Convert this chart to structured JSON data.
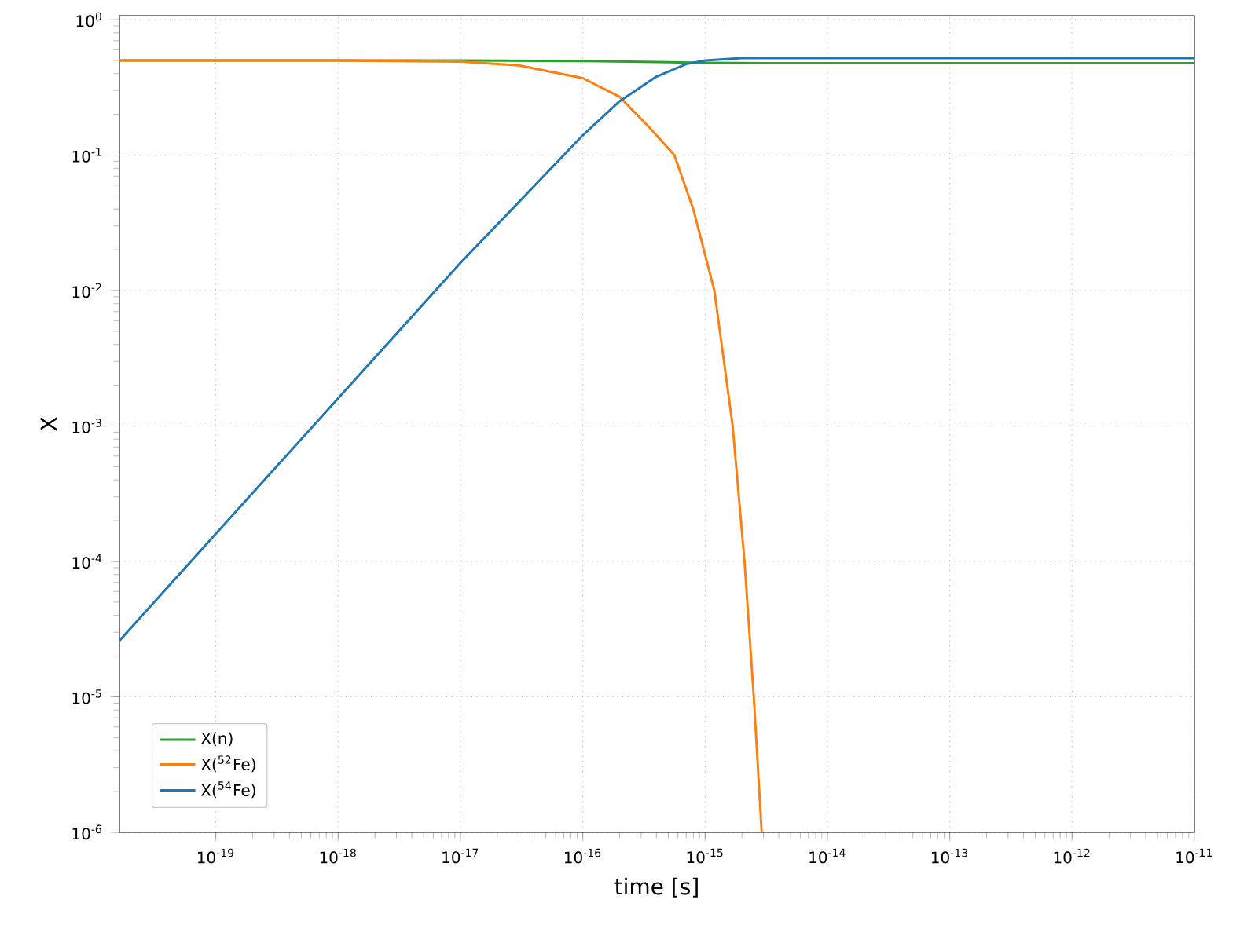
{
  "chart_data": {
    "type": "line",
    "xlabel": "time [s]",
    "ylabel": "X",
    "log": "xy",
    "grid": true,
    "legend": "bottom left",
    "xlim": [
      1.63e-20,
      1e-11
    ],
    "ylim": [
      1e-06,
      1.07
    ],
    "xticks": [
      {
        "value": 1e-19,
        "label": "10$^{-19}$"
      },
      {
        "value": 1e-18,
        "label": "10$^{-18}$"
      },
      {
        "value": 1e-17,
        "label": "10$^{-17}$"
      },
      {
        "value": 1e-16,
        "label": "10$^{-16}$"
      },
      {
        "value": 1e-15,
        "label": "10$^{-15}$"
      },
      {
        "value": 1e-14,
        "label": "10$^{-14}$"
      },
      {
        "value": 1e-13,
        "label": "10$^{-13}$"
      },
      {
        "value": 1e-12,
        "label": "10$^{-12}$"
      },
      {
        "value": 1e-11,
        "label": "10$^{-11}$"
      }
    ],
    "yticks": [
      {
        "value": 1e-06,
        "label": "10$^{-6}$"
      },
      {
        "value": 1e-05,
        "label": "10$^{-5}$"
      },
      {
        "value": 0.0001,
        "label": "10$^{-4}$"
      },
      {
        "value": 0.001,
        "label": "10$^{-3}$"
      },
      {
        "value": 0.01,
        "label": "10$^{-2}$"
      },
      {
        "value": 0.1,
        "label": "10$^{-1}$"
      },
      {
        "value": 1,
        "label": "10$^{0}$"
      }
    ],
    "series": [
      {
        "name": "X(n)",
        "color": "#2ca02c",
        "x": [
          1.63e-20,
          1e-17,
          1e-16,
          4e-16,
          1e-15,
          3e-15,
          1e-11
        ],
        "values": [
          0.5,
          0.5,
          0.495,
          0.487,
          0.48,
          0.478,
          0.478
        ]
      },
      {
        "name": "X($^{52}$Fe)",
        "color": "#ff7f0e",
        "x": [
          1.63e-20,
          1e-18,
          1e-17,
          3e-17,
          1e-16,
          2e-16,
          3.5e-16,
          5.6e-16,
          8e-16,
          1.19e-15,
          1.68e-15,
          2.1e-15,
          2.5e-15,
          2.9e-15
        ],
        "values": [
          0.5,
          0.5,
          0.49,
          0.46,
          0.37,
          0.27,
          0.16,
          0.1,
          0.04,
          0.01,
          0.001,
          0.0001,
          1e-05,
          1e-06
        ]
      },
      {
        "name": "X($^{54}$Fe)",
        "color": "#1f77b4",
        "x": [
          1.63e-20,
          1e-19,
          1e-18,
          1e-17,
          3e-17,
          1e-16,
          2e-16,
          4e-16,
          7e-16,
          1e-15,
          2e-15,
          1e-14,
          1e-11
        ],
        "values": [
          2.6e-05,
          0.00016,
          0.0016,
          0.016,
          0.045,
          0.14,
          0.25,
          0.38,
          0.47,
          0.5,
          0.52,
          0.52,
          0.52
        ]
      }
    ]
  }
}
